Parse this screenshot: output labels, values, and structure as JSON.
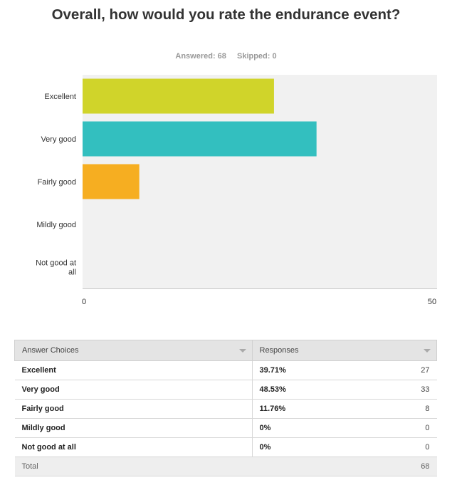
{
  "question": {
    "title": "Overall, how would you rate the endurance event?",
    "answered": "Answered: 68",
    "skipped": "Skipped: 0"
  },
  "chart_data": {
    "type": "bar",
    "orientation": "horizontal",
    "categories": [
      "Excellent",
      "Very good",
      "Fairly good",
      "Mildly good",
      "Not good at all"
    ],
    "values": [
      27,
      33,
      8,
      0,
      0
    ],
    "colors": [
      "#d0d42a",
      "#33bfbf",
      "#f6ae21",
      "#cccccc",
      "#cccccc"
    ],
    "xlim": [
      0,
      50
    ],
    "tick_labels": [
      "0",
      "50"
    ],
    "grid": false
  },
  "table": {
    "headers": [
      "Answer Choices",
      "Responses"
    ],
    "rows": [
      {
        "choice": "Excellent",
        "percent": "39.71%",
        "count": "27"
      },
      {
        "choice": "Very good",
        "percent": "48.53%",
        "count": "33"
      },
      {
        "choice": "Fairly good",
        "percent": "11.76%",
        "count": "8"
      },
      {
        "choice": "Mildly good",
        "percent": "0%",
        "count": "0"
      },
      {
        "choice": "Not good at all",
        "percent": "0%",
        "count": "0"
      }
    ],
    "total_label": "Total",
    "total_value": "68"
  }
}
